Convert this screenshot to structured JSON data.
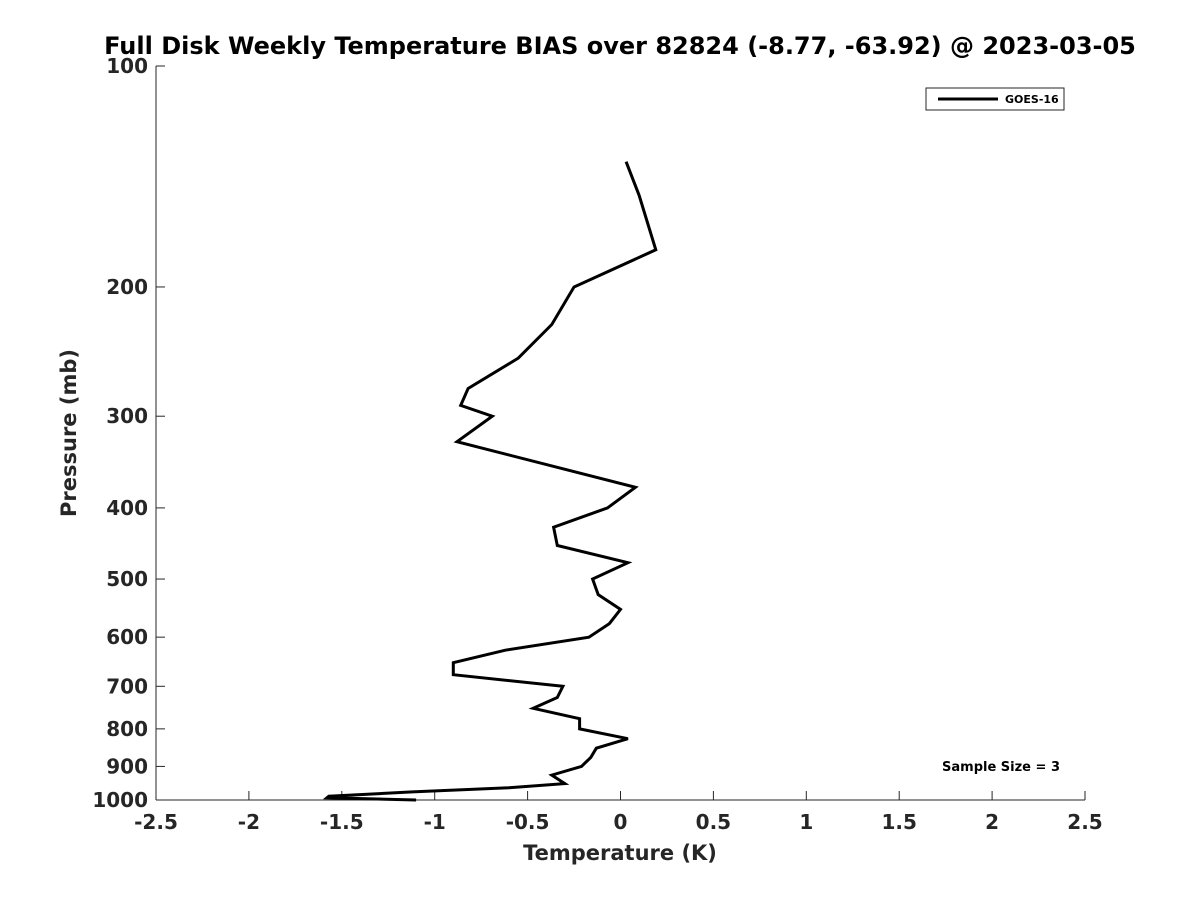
{
  "chart_data": {
    "type": "line",
    "title": "Full Disk Weekly Temperature BIAS over 82824 (-8.77, -63.92) @ 2023-03-05",
    "xlabel": "Temperature (K)",
    "ylabel": "Pressure (mb)",
    "xlim": [
      -2.5,
      2.5
    ],
    "ylim": [
      100,
      1000
    ],
    "y_scale": "log",
    "y_reversed": true,
    "x_ticks": [
      "-2.5",
      "-2",
      "-1.5",
      "-1",
      "-0.5",
      "0",
      "0.5",
      "1",
      "1.5",
      "2",
      "2.5"
    ],
    "x_tick_values": [
      -2.5,
      -2,
      -1.5,
      -1,
      -0.5,
      0,
      0.5,
      1,
      1.5,
      2,
      2.5
    ],
    "y_ticks": [
      "100",
      "200",
      "300",
      "400",
      "500",
      "600",
      "700",
      "800",
      "900",
      "1000"
    ],
    "y_tick_values": [
      100,
      200,
      300,
      400,
      500,
      600,
      700,
      800,
      900,
      1000
    ],
    "grid": false,
    "legend_position": "top-right",
    "annotation": "Sample Size = 3",
    "series": [
      {
        "name": "GOES-16",
        "color": "#000000",
        "points": [
          {
            "t": 0.03,
            "p": 135
          },
          {
            "t": 0.1,
            "p": 150
          },
          {
            "t": 0.19,
            "p": 178
          },
          {
            "t": -0.25,
            "p": 200
          },
          {
            "t": -0.37,
            "p": 225
          },
          {
            "t": -0.55,
            "p": 250
          },
          {
            "t": -0.82,
            "p": 275
          },
          {
            "t": -0.86,
            "p": 290
          },
          {
            "t": -0.69,
            "p": 300
          },
          {
            "t": -0.88,
            "p": 325
          },
          {
            "t": 0.08,
            "p": 375
          },
          {
            "t": -0.07,
            "p": 400
          },
          {
            "t": -0.36,
            "p": 425
          },
          {
            "t": -0.34,
            "p": 450
          },
          {
            "t": 0.04,
            "p": 475
          },
          {
            "t": -0.15,
            "p": 500
          },
          {
            "t": -0.12,
            "p": 525
          },
          {
            "t": 0.0,
            "p": 550
          },
          {
            "t": -0.06,
            "p": 575
          },
          {
            "t": -0.17,
            "p": 600
          },
          {
            "t": -0.62,
            "p": 625
          },
          {
            "t": -0.9,
            "p": 650
          },
          {
            "t": -0.9,
            "p": 675
          },
          {
            "t": -0.31,
            "p": 700
          },
          {
            "t": -0.34,
            "p": 725
          },
          {
            "t": -0.47,
            "p": 750
          },
          {
            "t": -0.22,
            "p": 775
          },
          {
            "t": -0.22,
            "p": 800
          },
          {
            "t": 0.04,
            "p": 825
          },
          {
            "t": -0.13,
            "p": 850
          },
          {
            "t": -0.16,
            "p": 875
          },
          {
            "t": -0.21,
            "p": 900
          },
          {
            "t": -0.37,
            "p": 925
          },
          {
            "t": -0.3,
            "p": 950
          },
          {
            "t": -0.6,
            "p": 962
          },
          {
            "t": -1.12,
            "p": 975
          },
          {
            "t": -1.57,
            "p": 988
          },
          {
            "t": -1.58,
            "p": 993
          },
          {
            "t": -1.1,
            "p": 1000
          }
        ]
      }
    ]
  }
}
